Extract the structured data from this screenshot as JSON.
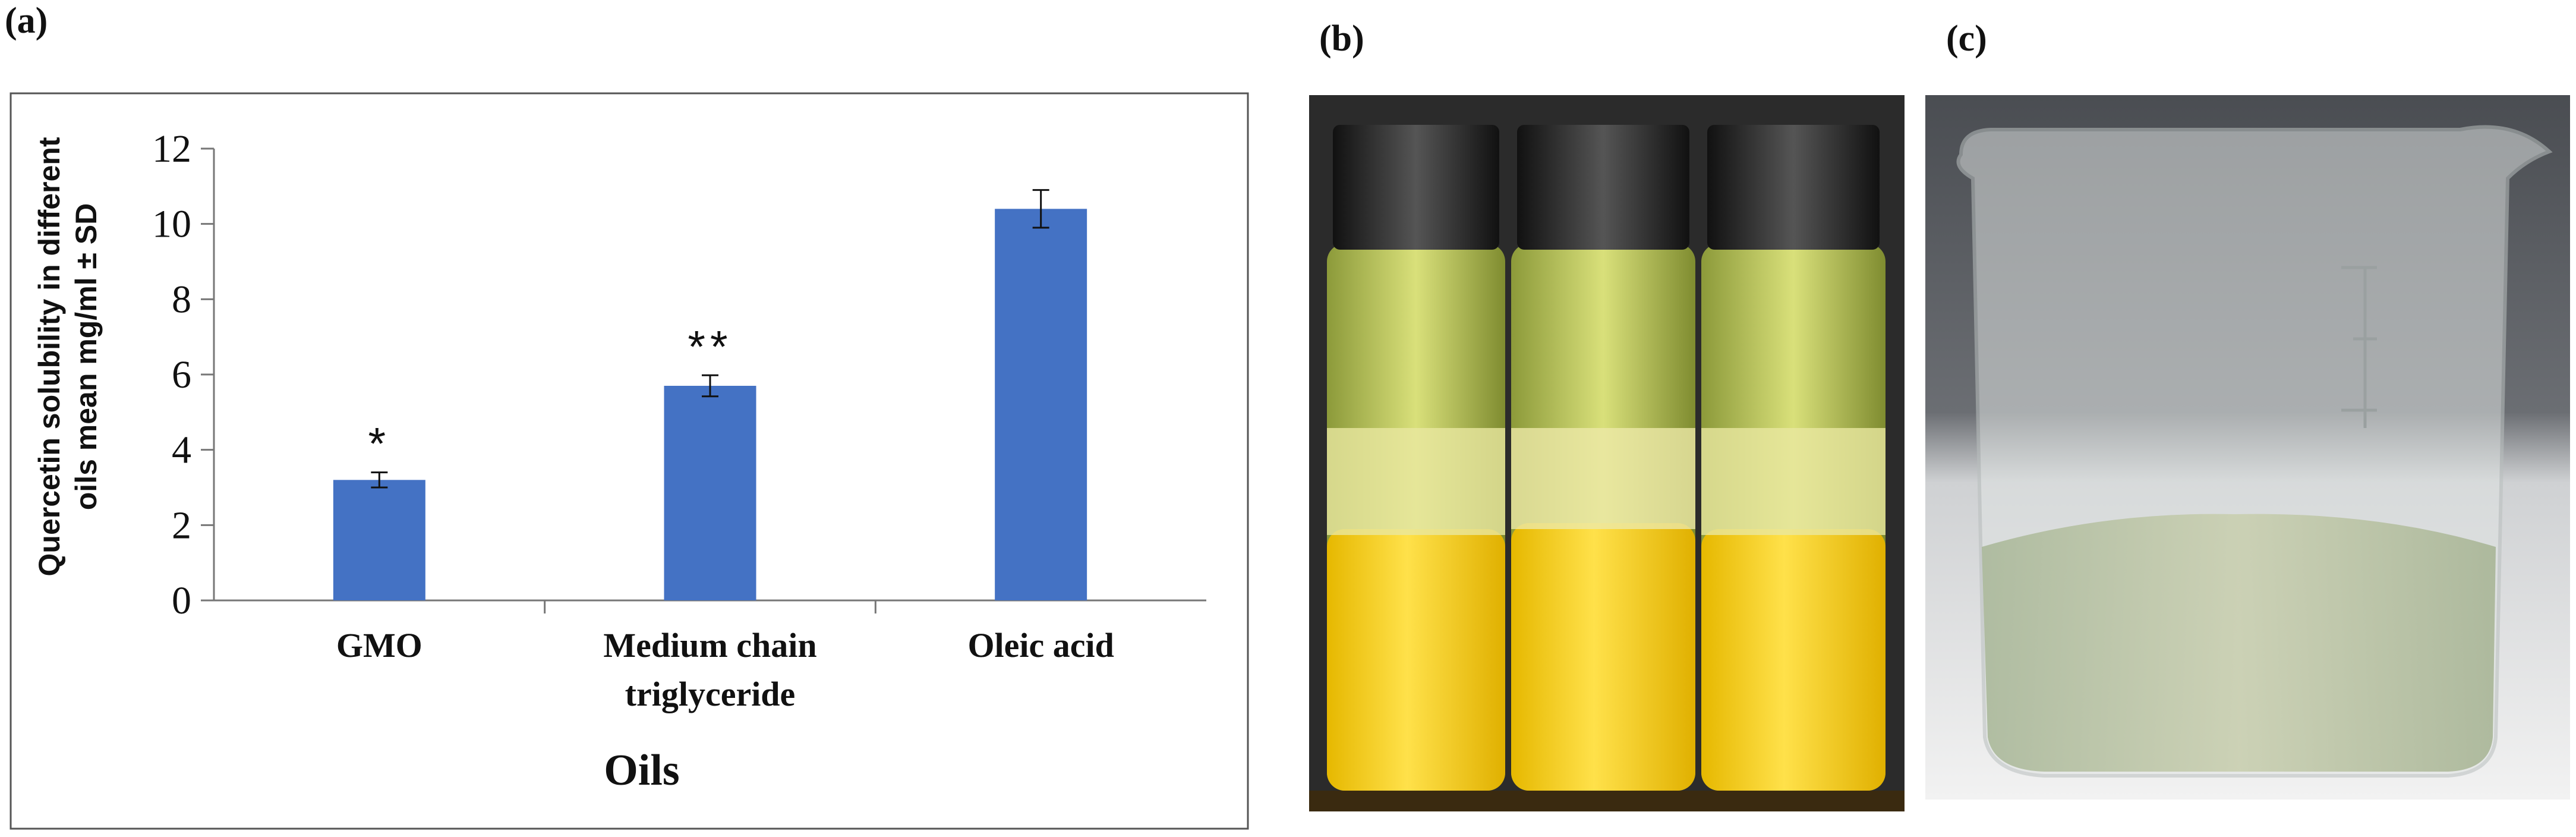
{
  "panels": {
    "a": "(a)",
    "b": "(b)",
    "c": "(c)"
  },
  "chart_data": {
    "type": "bar",
    "categories": [
      "GMO",
      [
        "Medium chain",
        "triglyceride"
      ],
      "Oleic acid"
    ],
    "values": [
      3.2,
      5.7,
      10.4
    ],
    "errors": [
      0.2,
      0.28,
      0.5
    ],
    "annotations": [
      "*",
      "**",
      ""
    ],
    "xlabel": "Oils",
    "ylabel": [
      "Quercetin solubility in different",
      "oils mean mg/ml ± SD"
    ],
    "ylim": [
      0,
      12
    ],
    "yticks": [
      0,
      2,
      4,
      6,
      8,
      10,
      12
    ],
    "bar_color": "#4472c4",
    "grid": false
  },
  "colors": {
    "bar": "#4472c4",
    "vial_yellow": "#f5d22a",
    "dark_bg": "#2a2a2a"
  }
}
